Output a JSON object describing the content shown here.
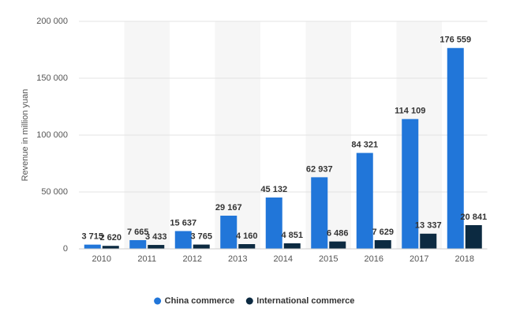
{
  "chart_data": {
    "type": "bar",
    "y_label": "Revenue in million yuan",
    "categories": [
      "2010",
      "2011",
      "2012",
      "2013",
      "2014",
      "2015",
      "2016",
      "2017",
      "2018"
    ],
    "series": [
      {
        "name": "China commerce",
        "color": "#2176d9",
        "values": [
          3715,
          7665,
          15637,
          29167,
          45132,
          62937,
          84321,
          114109,
          176559
        ],
        "value_labels": [
          "3 715",
          "7 665",
          "15 637",
          "29 167",
          "45 132",
          "62 937",
          "84 321",
          "114 109",
          "176 559"
        ]
      },
      {
        "name": "International commerce",
        "color": "#0c2a41",
        "values": [
          2620,
          3433,
          3765,
          4160,
          4851,
          6486,
          7629,
          13337,
          20841
        ],
        "value_labels": [
          "2 620",
          "3 433",
          "3 765",
          "4 160",
          "4 851",
          "6 486",
          "7 629",
          "13 337",
          "20 841"
        ]
      }
    ],
    "ylim": [
      0,
      200000
    ],
    "yticks": [
      0,
      {
        "value": 50000,
        "label": "50 000"
      },
      {
        "value": 100000,
        "label": "100 000"
      },
      {
        "value": 150000,
        "label": "150 000"
      },
      {
        "value": 200000,
        "label": "200 000"
      }
    ],
    "grid": true
  }
}
